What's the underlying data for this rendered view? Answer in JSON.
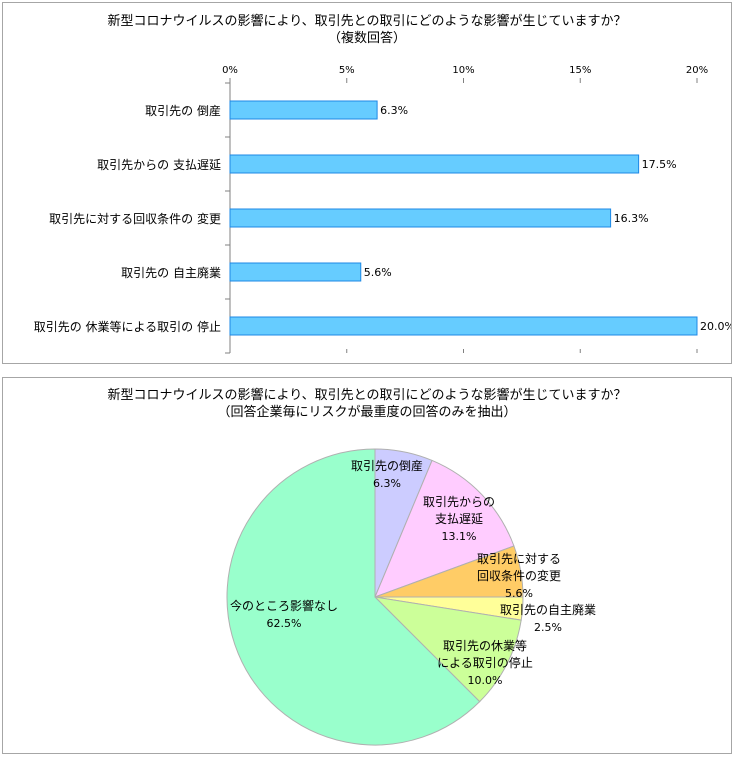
{
  "charts": [
    {
      "title": "新型コロナウイルスの影響により、取引先との取引にどのような影響が生じていますか？",
      "subtitle": "（複数回答）"
    },
    {
      "title": "新型コロナウイルスの影響により、取引先との取引にどのような影響が生じていますか？",
      "subtitle": "（回答企業毎にリスクが最重度の回答のみを抽出）"
    }
  ],
  "chart_data": [
    {
      "type": "bar",
      "orientation": "horizontal",
      "categories": [
        "取引先の倒産",
        "取引先からの支払遅延",
        "取引先に対する回収条件の変更",
        "取引先の自主廃業",
        "取引先の休業等による取引の停止"
      ],
      "category_labels": [
        "取引先の 倒産",
        "取引先からの 支払遅延",
        "取引先に対する回収条件の 変更",
        "取引先の 自主廃業",
        "取引先の 休業等による取引の 停止"
      ],
      "values": [
        6.3,
        17.5,
        16.3,
        5.6,
        20.0
      ],
      "value_labels": [
        "6.3%",
        "17.5%",
        "16.3%",
        "5.6%",
        "20.0%"
      ],
      "xlim": [
        0,
        20
      ],
      "ticks": [
        0,
        5,
        10,
        15,
        20
      ],
      "tick_labels": [
        "0%",
        "5%",
        "10%",
        "15%",
        "20%"
      ],
      "xaxis_position": "top",
      "grid": false,
      "colors": {
        "bar_fill": "#66ccff",
        "bar_stroke": "#1e88e5"
      }
    },
    {
      "type": "pie",
      "start_angle": "12 o'clock",
      "direction": "clockwise",
      "slices": [
        {
          "label_lines": [
            "取引先の倒産"
          ],
          "value": 6.3,
          "value_label": "6.3%",
          "color": "#ccccff"
        },
        {
          "label_lines": [
            "取引先からの",
            "支払遅延"
          ],
          "value": 13.1,
          "value_label": "13.1%",
          "color": "#ffccff"
        },
        {
          "label_lines": [
            "取引先に対する",
            "回収条件の変更"
          ],
          "value": 5.6,
          "value_label": "5.6%",
          "color": "#ffcc66"
        },
        {
          "label_lines": [
            "取引先の自主廃業"
          ],
          "value": 2.5,
          "value_label": "2.5%",
          "color": "#ffff99"
        },
        {
          "label_lines": [
            "取引先の休業等",
            "による取引の停止"
          ],
          "value": 10.0,
          "value_label": "10.0%",
          "color": "#ccff99"
        },
        {
          "label_lines": [
            "今のところ影響なし"
          ],
          "value": 62.5,
          "value_label": "62.5%",
          "color": "#99ffcc"
        }
      ],
      "colors": {
        "slice_stroke": "#b0b0b0"
      }
    }
  ]
}
